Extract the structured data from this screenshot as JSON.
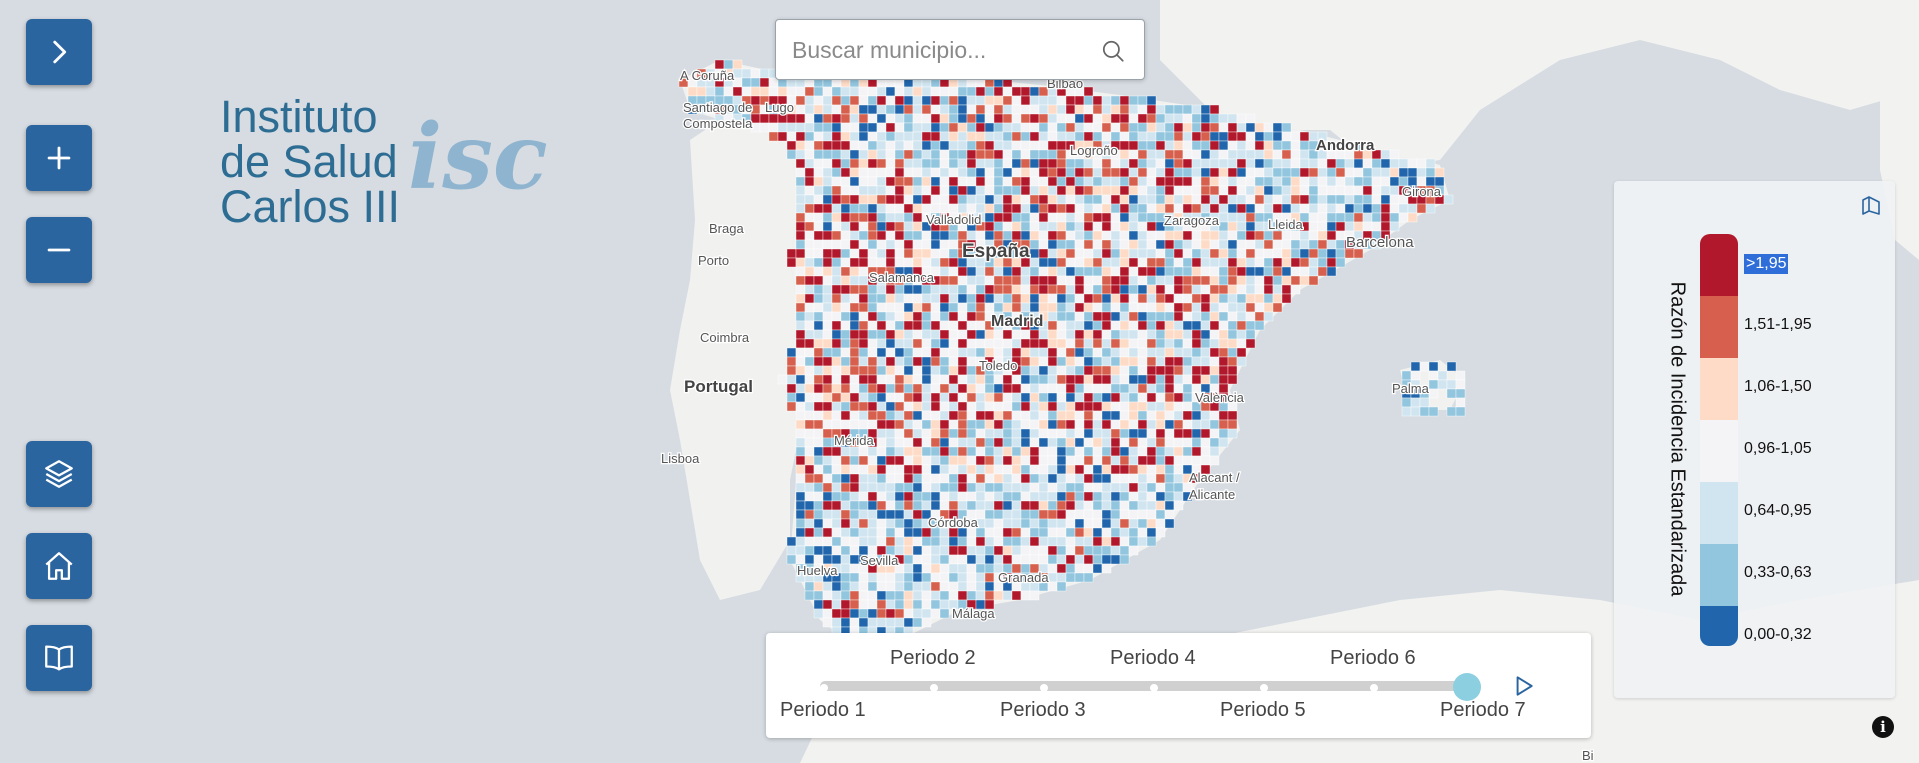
{
  "search": {
    "placeholder": "Buscar municipio..."
  },
  "logo": {
    "line1": "Instituto",
    "line2": "de Salud",
    "line3": "Carlos III",
    "mark": "isc"
  },
  "map": {
    "place_labels": [
      "A Coruña",
      "Santiago de",
      "Compostela",
      "Lugo",
      "Bilbao",
      "Logroño",
      "Andorra",
      "Girona",
      "Braga",
      "Porto",
      "Valladolid",
      "España",
      "Zaragoza",
      "Lleida",
      "Barcelona",
      "Salamanca",
      "Madrid",
      "Coimbra",
      "Portugal",
      "Toledo",
      "Palma",
      "València",
      "Mérida",
      "Lisboa",
      "Alacant /",
      "Alicante",
      "Córdoba",
      "Sevilla",
      "Huelva",
      "Granada",
      "Málaga",
      "Bi"
    ],
    "water_color": "#d6dce2",
    "land_color": "#f3f3f1"
  },
  "timeline": {
    "periods": [
      "Periodo 1",
      "Periodo 2",
      "Periodo 3",
      "Periodo 4",
      "Periodo 5",
      "Periodo 6",
      "Periodo 7"
    ],
    "selected": "Periodo 7",
    "selected_index": 7
  },
  "legend": {
    "title": "Razón de Incidencia Estandarizada",
    "classes": [
      {
        "label": ">1,95",
        "color": "#b2182b",
        "selected": true
      },
      {
        "label": "1,51-1,95",
        "color": "#d6604d"
      },
      {
        "label": "1,06-1,50",
        "color": "#fddbc7"
      },
      {
        "label": "0,96-1,05",
        "color": "#f4f4f6"
      },
      {
        "label": "0,64-0,95",
        "color": "#d1e5f0"
      },
      {
        "label": "0,33-0,63",
        "color": "#92c5de"
      },
      {
        "label": "0,00-0,32",
        "color": "#2166ac"
      }
    ]
  },
  "controls": [
    "expand-panel",
    "zoom-in",
    "zoom-out",
    "layers",
    "home",
    "guide"
  ],
  "accent": "#2b65a0"
}
